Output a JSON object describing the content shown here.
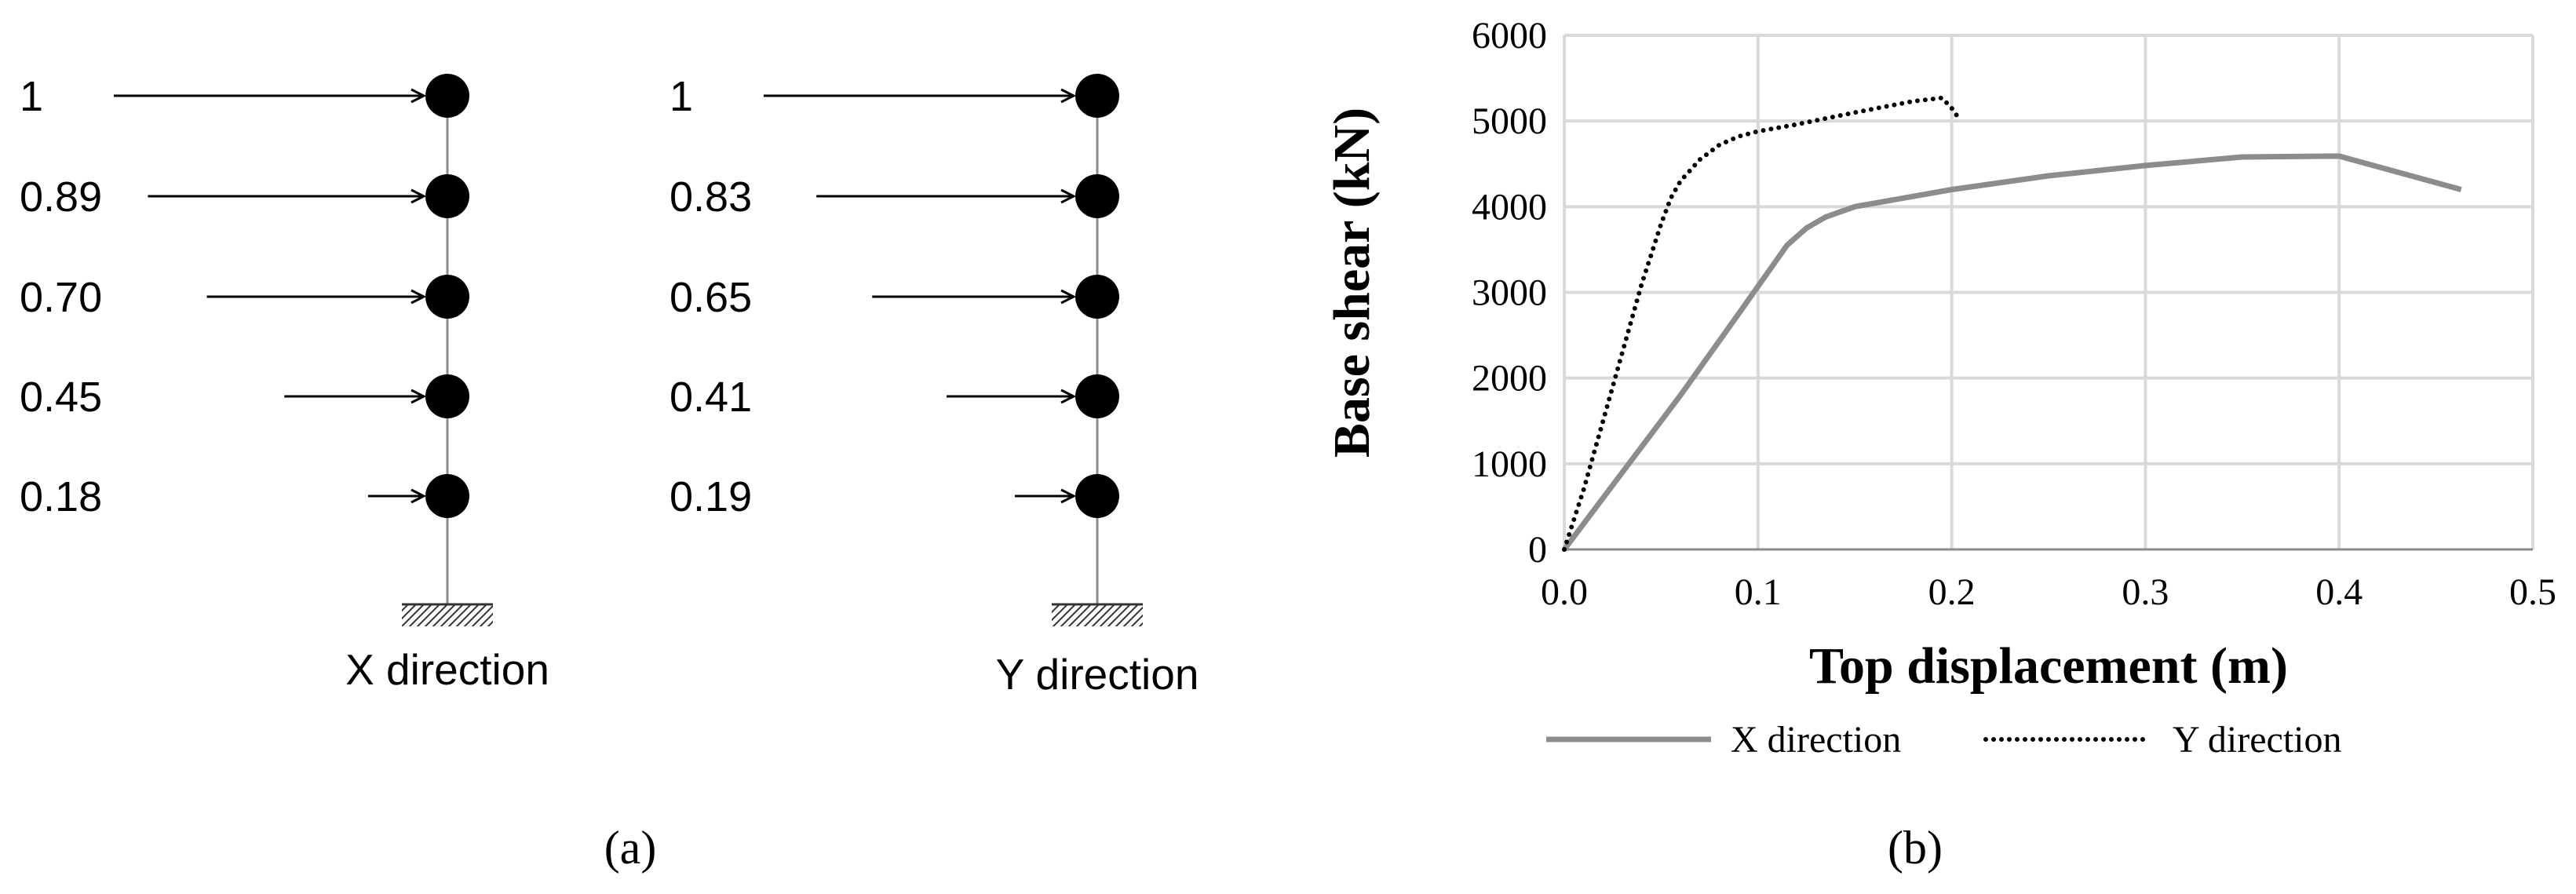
{
  "panel_a": {
    "caption": "(a)",
    "columns": [
      {
        "direction_label": "X direction",
        "load_labels": [
          "1",
          "0.89",
          "0.70",
          "0.45",
          "0.18"
        ],
        "load_factors": [
          1,
          0.89,
          0.7,
          0.45,
          0.18
        ]
      },
      {
        "direction_label": "Y direction",
        "load_labels": [
          "1",
          "0.83",
          "0.65",
          "0.41",
          "0.19"
        ],
        "load_factors": [
          1,
          0.83,
          0.65,
          0.41,
          0.19
        ]
      }
    ]
  },
  "panel_b": {
    "caption": "(b)"
  },
  "chart_data": {
    "type": "line",
    "xlabel": "Top displacement (m)",
    "ylabel": "Base shear (kN)",
    "xlim": [
      0,
      0.5
    ],
    "ylim": [
      0,
      6000
    ],
    "x_ticks": [
      "0.0",
      "0.1",
      "0.2",
      "0.3",
      "0.4",
      "0.5"
    ],
    "y_ticks": [
      "0",
      "1000",
      "2000",
      "3000",
      "4000",
      "5000",
      "6000"
    ],
    "grid": true,
    "legend_position": "bottom",
    "series": [
      {
        "name": "X direction",
        "style": "solid",
        "color": "#8c8c8c",
        "x": [
          0,
          0.03,
          0.06,
          0.09,
          0.115,
          0.125,
          0.135,
          0.15,
          0.2,
          0.25,
          0.3,
          0.35,
          0.4,
          0.463
        ],
        "y": [
          0,
          900,
          1800,
          2750,
          3550,
          3750,
          3880,
          4000,
          4200,
          4360,
          4480,
          4580,
          4590,
          4200
        ]
      },
      {
        "name": "Y direction",
        "style": "dotted",
        "color": "#000000",
        "x": [
          0,
          0.01,
          0.02,
          0.03,
          0.04,
          0.05,
          0.055,
          0.06,
          0.07,
          0.08,
          0.09,
          0.1,
          0.12,
          0.15,
          0.18,
          0.195,
          0.2,
          0.204
        ],
        "y": [
          0,
          700,
          1500,
          2300,
          3100,
          3800,
          4100,
          4300,
          4550,
          4720,
          4820,
          4880,
          4960,
          5100,
          5230,
          5270,
          5150,
          5020
        ]
      }
    ]
  }
}
